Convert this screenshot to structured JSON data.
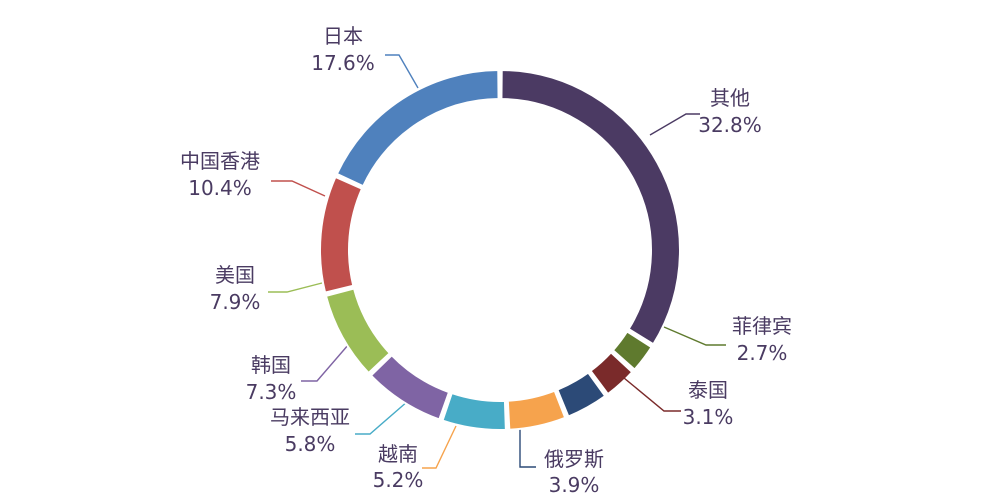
{
  "chart_data": {
    "type": "pie",
    "categories": [
      "其他",
      "菲律宾",
      "泰国",
      "俄罗斯",
      "越南",
      "马来西亚",
      "韩国",
      "美国",
      "中国香港",
      "日本"
    ],
    "values": [
      32.8,
      2.7,
      3.1,
      3.9,
      5.2,
      5.8,
      7.3,
      7.9,
      10.4,
      17.6
    ],
    "value_labels": [
      "32.8%",
      "2.7%",
      "3.1%",
      "3.9%",
      "5.2%",
      "5.8%",
      "7.3%",
      "7.9%",
      "10.4%",
      "17.6%"
    ],
    "colors": [
      "#4b3a63",
      "#5f7a2e",
      "#7a2a2a",
      "#2c4a77",
      "#f6a34d",
      "#48acc7",
      "#7f64a4",
      "#9bbd56",
      "#c0504d",
      "#4f81bd",
      "#236b7a"
    ],
    "style": "donut",
    "legend": "none"
  }
}
